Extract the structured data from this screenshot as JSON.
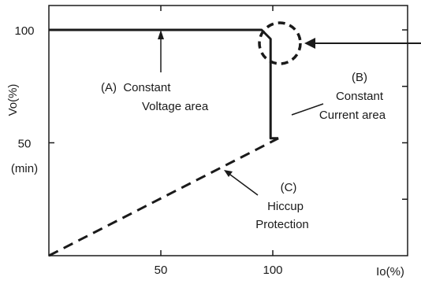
{
  "chart_data": {
    "type": "line",
    "title": "",
    "xlabel": "Io(%)",
    "ylabel": "Vo(%)",
    "xlim": [
      0,
      110
    ],
    "ylim": [
      0,
      110
    ],
    "x_ticks": [
      {
        "value": 50,
        "label": "50"
      },
      {
        "value": 100,
        "label": "100"
      }
    ],
    "y_ticks": [
      {
        "value": 100,
        "label": "100"
      },
      {
        "value": 50,
        "label": "50"
      }
    ],
    "y_min_label": "(min)",
    "grid": false,
    "series": [
      {
        "style": "solid",
        "x": [
          0,
          95,
          99,
          99,
          102.5
        ],
        "y": [
          100,
          100,
          96,
          52,
          52
        ]
      },
      {
        "style": "dashed",
        "x": [
          0,
          102.5
        ],
        "y": [
          0,
          52
        ]
      }
    ],
    "annotations": [
      {
        "id": "A",
        "lines": [
          "(A)  Constant",
          "Voltage area"
        ]
      },
      {
        "id": "B",
        "lines": [
          "(B)",
          "Constant",
          "Current area"
        ]
      },
      {
        "id": "C",
        "lines": [
          "(C)",
          "Hiccup",
          "Protection"
        ]
      }
    ]
  }
}
